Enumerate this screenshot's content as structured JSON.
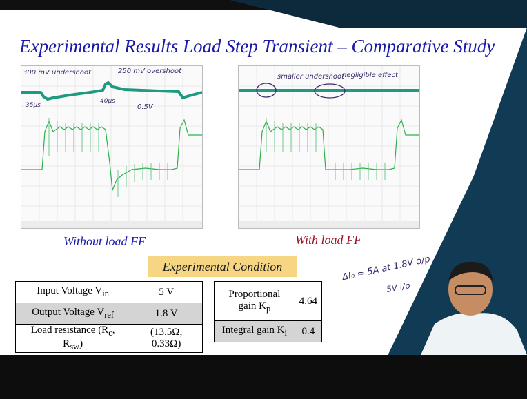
{
  "title": "Experimental Results Load Step Transient – Comparative Study",
  "scope_left": {
    "caption": "Without load FF",
    "annotations": [
      "300 mV undershoot",
      "250 mV overshoot",
      "35µs",
      "40µs",
      "0.5V"
    ]
  },
  "scope_right": {
    "caption": "With load FF",
    "annotations": [
      "smaller undershoot",
      "negligible effect"
    ]
  },
  "condition_title": "Experimental Condition",
  "table_left": [
    {
      "label": "Input Voltage V",
      "sub": "in",
      "value": "5 V"
    },
    {
      "label": "Output Voltage V",
      "sub": "ref",
      "value": "1.8 V"
    },
    {
      "label": "Load resistance (R",
      "sub": "c",
      "label2": ", R",
      "sub2": "sw",
      "label3": ")",
      "value": "(13.5Ω, 0.33Ω)"
    }
  ],
  "table_right": [
    {
      "label": "Proportional gain K",
      "sub": "p",
      "value": "4.64"
    },
    {
      "label": "Integral gain K",
      "sub": "i",
      "value": "0.4"
    }
  ],
  "handwritten_note": [
    "ΔI₀ ≈ 5A at 1.8V o/p",
    "5V i/p"
  ],
  "colors": {
    "title": "#1a1aa8",
    "caption_red": "#a01020",
    "trace_top": "#1e9a80",
    "trace_bottom": "#2bb14a",
    "condition_bg": "#f6d682"
  }
}
